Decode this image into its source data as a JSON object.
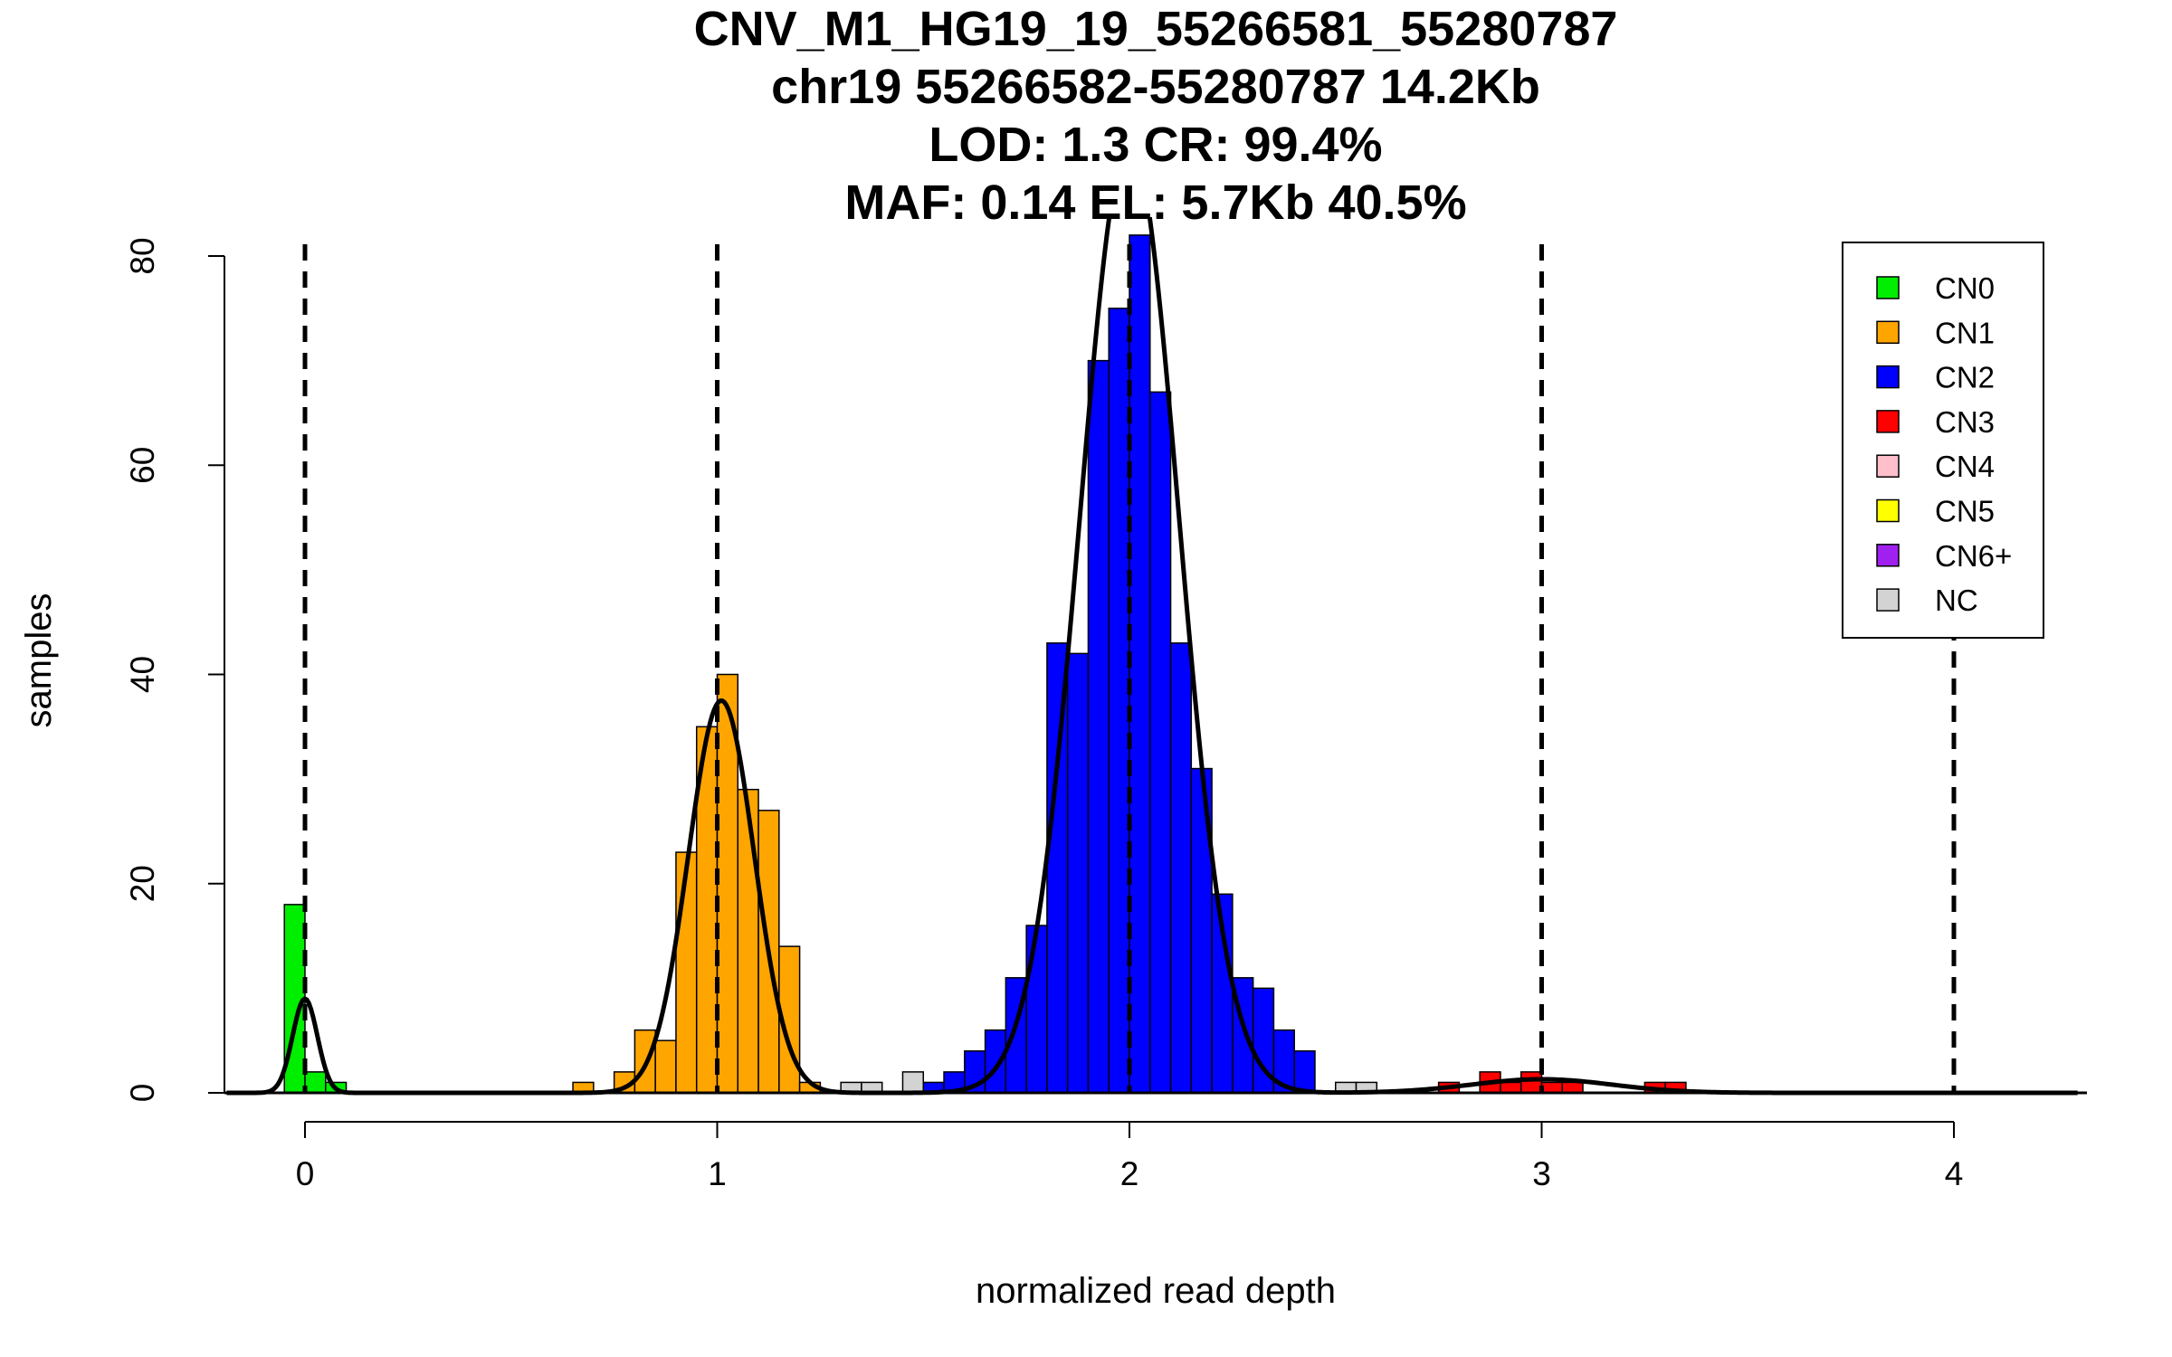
{
  "chart_data": {
    "type": "bar",
    "title_lines": [
      "CNV_M1_HG19_19_55266581_55280787",
      "chr19 55266582-55280787 14.2Kb",
      "LOD: 1.3 CR: 99.4%",
      "MAF: 0.14 EL: 5.7Kb 40.5%"
    ],
    "xlabel": "normalized read depth",
    "ylabel": "samples",
    "xlim": [
      -0.19,
      4.3
    ],
    "ylim": [
      0,
      80
    ],
    "x_ticks": [
      0,
      1,
      2,
      3,
      4
    ],
    "x_tick_labels": [
      "0",
      "1",
      "2",
      "3",
      "4"
    ],
    "y_ticks": [
      0,
      20,
      40,
      60,
      80
    ],
    "y_tick_labels": [
      "0",
      "20",
      "40",
      "60",
      "80"
    ],
    "copy_number_reference_lines": [
      0,
      1,
      2,
      3,
      4
    ],
    "bin_width": 0.05,
    "colors": {
      "CN0": "#00ee00",
      "CN1": "#ffa500",
      "CN2": "#0000ff",
      "CN3": "#ff0000",
      "CN4": "#ffc0cb",
      "CN5": "#ffff00",
      "CN6+": "#a020f0",
      "NC": "#d3d3d3"
    },
    "series": [
      {
        "name": "CN0",
        "bins": [
          [
            -0.025,
            18
          ],
          [
            0.025,
            2
          ],
          [
            0.075,
            1
          ]
        ]
      },
      {
        "name": "CN1",
        "bins": [
          [
            0.675,
            1
          ],
          [
            0.775,
            2
          ],
          [
            0.825,
            6
          ],
          [
            0.875,
            5
          ],
          [
            0.925,
            23
          ],
          [
            0.975,
            35
          ],
          [
            1.025,
            40
          ],
          [
            1.075,
            29
          ],
          [
            1.125,
            27
          ],
          [
            1.175,
            14
          ],
          [
            1.225,
            1
          ]
        ]
      },
      {
        "name": "NC",
        "bins": [
          [
            1.325,
            1
          ],
          [
            1.375,
            1
          ],
          [
            1.475,
            2
          ],
          [
            2.525,
            1
          ],
          [
            2.575,
            1
          ]
        ]
      },
      {
        "name": "CN2",
        "bins": [
          [
            1.525,
            1
          ],
          [
            1.575,
            2
          ],
          [
            1.625,
            4
          ],
          [
            1.675,
            6
          ],
          [
            1.725,
            11
          ],
          [
            1.775,
            16
          ],
          [
            1.825,
            43
          ],
          [
            1.875,
            42
          ],
          [
            1.925,
            70
          ],
          [
            1.975,
            75
          ],
          [
            2.025,
            82
          ],
          [
            2.075,
            67
          ],
          [
            2.125,
            43
          ],
          [
            2.175,
            31
          ],
          [
            2.225,
            19
          ],
          [
            2.275,
            11
          ],
          [
            2.325,
            10
          ],
          [
            2.375,
            6
          ],
          [
            2.425,
            4
          ]
        ]
      },
      {
        "name": "CN3",
        "bins": [
          [
            2.775,
            1
          ],
          [
            2.875,
            2
          ],
          [
            2.925,
            1
          ],
          [
            2.975,
            2
          ],
          [
            3.025,
            1
          ],
          [
            3.075,
            1
          ],
          [
            3.275,
            1
          ],
          [
            3.325,
            1
          ]
        ]
      }
    ],
    "fit_curves": [
      {
        "name": "CN0 fit",
        "mean": 0.0,
        "sd": 0.03,
        "peak": 9
      },
      {
        "name": "CN1 fit",
        "mean": 1.01,
        "sd": 0.08,
        "peak": 37.5
      },
      {
        "name": "CN2 fit",
        "mean": 2.0,
        "sd": 0.12,
        "peak": 91
      },
      {
        "name": "CN3 fit",
        "mean": 3.0,
        "sd": 0.17,
        "peak": 1.3
      }
    ],
    "legend": {
      "placement": "top-right",
      "entries": [
        "CN0",
        "CN1",
        "CN2",
        "CN3",
        "CN4",
        "CN5",
        "CN6+",
        "NC"
      ]
    }
  }
}
